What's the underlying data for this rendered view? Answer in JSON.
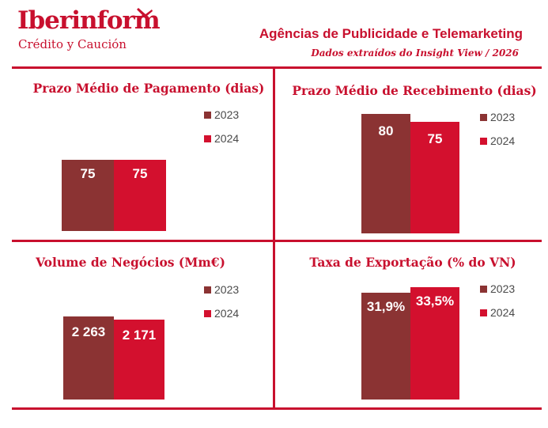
{
  "brand": {
    "name": "Iberinform",
    "tagline": "Crédito y Caución",
    "color": "#c8102e"
  },
  "header": {
    "title": "Agências de Publicidade e Telemarketing",
    "subtitle": "Dados extraídos do Insight View / 2026"
  },
  "colors": {
    "y2023": "#8b3333",
    "y2024": "#d3102e",
    "accent": "#c8102e"
  },
  "chart_data": [
    {
      "type": "bar",
      "title": "Prazo Médio de Pagamento (dias)",
      "categories": [
        "2023",
        "2024"
      ],
      "values": [
        75,
        75
      ],
      "labels": [
        "75",
        "75"
      ],
      "legend": [
        "2023",
        "2024"
      ]
    },
    {
      "type": "bar",
      "title": "Prazo Médio de Recebimento (dias)",
      "categories": [
        "2023",
        "2024"
      ],
      "values": [
        80,
        75
      ],
      "labels": [
        "80",
        "75"
      ],
      "legend": [
        "2023",
        "2024"
      ]
    },
    {
      "type": "bar",
      "title": "Volume de Negócios (Mm€)",
      "categories": [
        "2023",
        "2024"
      ],
      "values": [
        2263,
        2171
      ],
      "labels": [
        "2 263",
        "2 171"
      ],
      "legend": [
        "2023",
        "2024"
      ]
    },
    {
      "type": "bar",
      "title": "Taxa de Exportação (% do VN)",
      "categories": [
        "2023",
        "2024"
      ],
      "values": [
        31.9,
        33.5
      ],
      "labels": [
        "31,9%",
        "33,5%"
      ],
      "legend": [
        "2023",
        "2024"
      ]
    }
  ]
}
